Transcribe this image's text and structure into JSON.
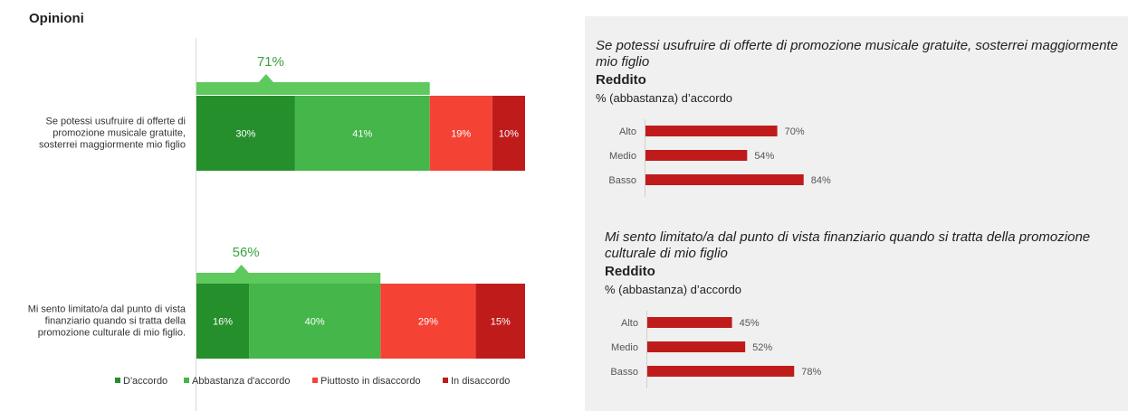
{
  "page": {
    "title": "Opinioni"
  },
  "colors": {
    "d_accordo": "#258f2c",
    "abbastanza": "#45b649",
    "piuttosto": "#f44335",
    "disaccordo": "#c01b1b",
    "agg_bar": "#5ec95c",
    "agg_text": "#3aa33f",
    "mini_bar": "#c01b1b"
  },
  "chart_data": [
    {
      "type": "bar",
      "orientation": "horizontal",
      "stacked": true,
      "title": "Opinioni",
      "categories": [
        "Se potessi usufruire di offerte di promozione musicale gratuite, sosterrei maggiormente mio figlio",
        "Mi sento limitato/a dal punto di vista finanziario quando si tratta della promozione culturale di mio figlio."
      ],
      "category_lines": [
        [
          "Se potessi usufruire di offerte di",
          "promozione musicale gratuite,",
          "sosterrei maggiormente mio figlio"
        ],
        [
          "Mi sento limitato/a dal punto di vista",
          "finanziario quando si tratta della",
          "promozione culturale di mio figlio."
        ]
      ],
      "series": [
        {
          "name": "D'accordo",
          "values": [
            30,
            16
          ]
        },
        {
          "name": "Abbastanza d'accordo",
          "values": [
            41,
            40
          ]
        },
        {
          "name": "Piuttosto in disaccordo",
          "values": [
            19,
            29
          ]
        },
        {
          "name": "In disaccordo",
          "values": [
            10,
            15
          ]
        }
      ],
      "aggregate_labels": [
        "71%",
        "56%"
      ],
      "aggregate_values": [
        71,
        56
      ],
      "legend_position": "bottom",
      "xlim": [
        0,
        100
      ]
    },
    {
      "type": "bar",
      "orientation": "horizontal",
      "title": "Se potessi usufruire di offerte di promozione musicale gratuite, sosterrei maggiormente mio figlio",
      "subtitle": "Reddito",
      "unit_label": "% (abbastanza) d’accordo",
      "categories": [
        "Alto",
        "Medio",
        "Basso"
      ],
      "values": [
        70,
        54,
        84
      ],
      "value_labels": [
        "70%",
        "54%",
        "84%"
      ]
    },
    {
      "type": "bar",
      "orientation": "horizontal",
      "title": "Mi sento limitato/a dal punto di vista finanziario quando si tratta della promozione culturale di mio figlio",
      "subtitle": "Reddito",
      "unit_label": "% (abbastanza) d’accordo",
      "categories": [
        "Alto",
        "Medio",
        "Basso"
      ],
      "values": [
        45,
        52,
        78
      ],
      "value_labels": [
        "45%",
        "52%",
        "78%"
      ]
    }
  ]
}
